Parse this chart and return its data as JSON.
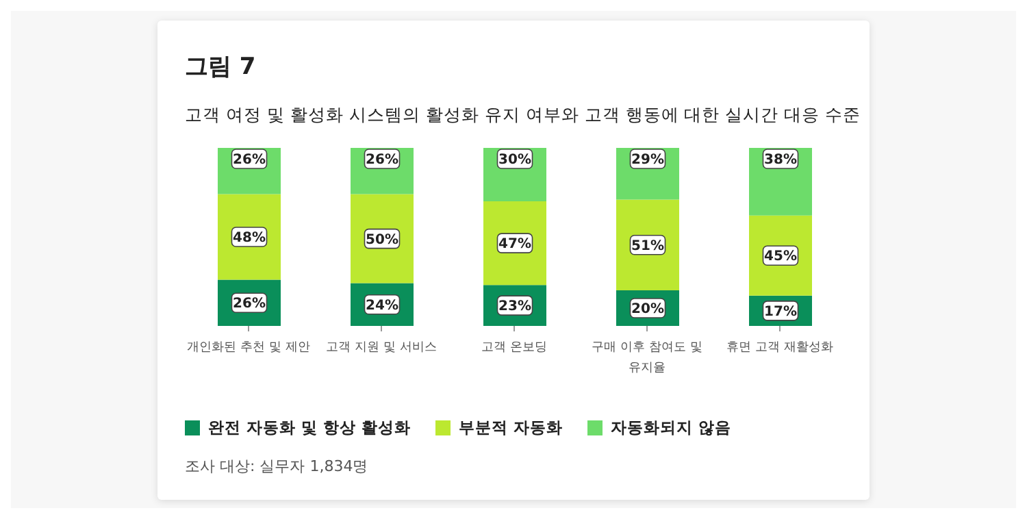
{
  "chart_data": {
    "type": "bar",
    "title": "그림 7",
    "subtitle": "고객 여정 및 활성화 시스템의 활성화 유지 여부와 고객 행동에 대한 실시간 대응 수준",
    "categories": [
      "개인화된 추천 및 제안",
      "고객 지원 및 서비스",
      "고객 온보딩",
      "구매 이후 참여도 및 유지율",
      "휴면 고객 재활성화"
    ],
    "stacked": true,
    "legend": "bottom",
    "grid": false,
    "series": [
      {
        "name": "완전 자동화 및 항상 활성화",
        "color": "#0a8f5a",
        "values": [
          26,
          24,
          23,
          20,
          17
        ],
        "value_labels": [
          "26%",
          "24%",
          "23%",
          "20%",
          "17%"
        ]
      },
      {
        "name": "부분적 자동화",
        "color": "#bce830",
        "values": [
          48,
          50,
          47,
          51,
          45
        ],
        "value_labels": [
          "48%",
          "50%",
          "47%",
          "51%",
          "45%"
        ]
      },
      {
        "name": "자동화되지 않음",
        "color": "#6ddc6a",
        "values": [
          26,
          26,
          30,
          29,
          38
        ],
        "value_labels": [
          "26%",
          "26%",
          "30%",
          "29%",
          "38%"
        ]
      }
    ],
    "annotations": [
      "조사 대상: 실무자 1,834명"
    ]
  }
}
